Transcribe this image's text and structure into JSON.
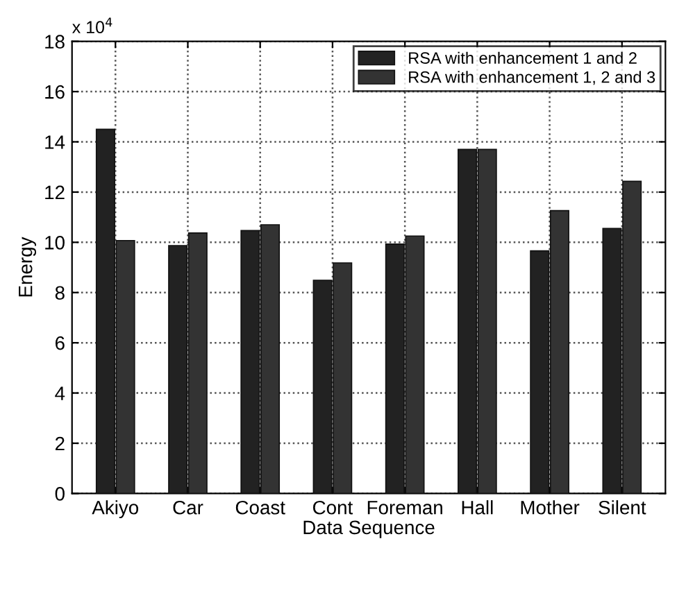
{
  "chart_data": {
    "type": "bar",
    "xlabel": "Data Sequence",
    "ylabel": "Energy",
    "annotations": [
      "x 10$^{4}$"
    ],
    "categories": [
      "Akiyo",
      "Car",
      "Coast",
      "Cont",
      "Foreman",
      "Hall",
      "Mother",
      "Silent"
    ],
    "series": [
      {
        "name": "RSA with enhancement 1 and 2",
        "color": "#222222",
        "values": [
          14.5,
          9.87,
          10.47,
          8.49,
          9.93,
          13.7,
          9.66,
          10.55
        ]
      },
      {
        "name": "RSA with enhancement 1, 2 and 3",
        "color": "#333333",
        "values": [
          10.07,
          10.37,
          10.7,
          9.18,
          10.25,
          13.7,
          11.26,
          12.43
        ]
      }
    ],
    "ylim": [
      0,
      18
    ],
    "yticks": [
      0,
      2,
      4,
      6,
      8,
      10,
      12,
      14,
      16,
      18
    ],
    "grid": true,
    "legend": "top right"
  }
}
